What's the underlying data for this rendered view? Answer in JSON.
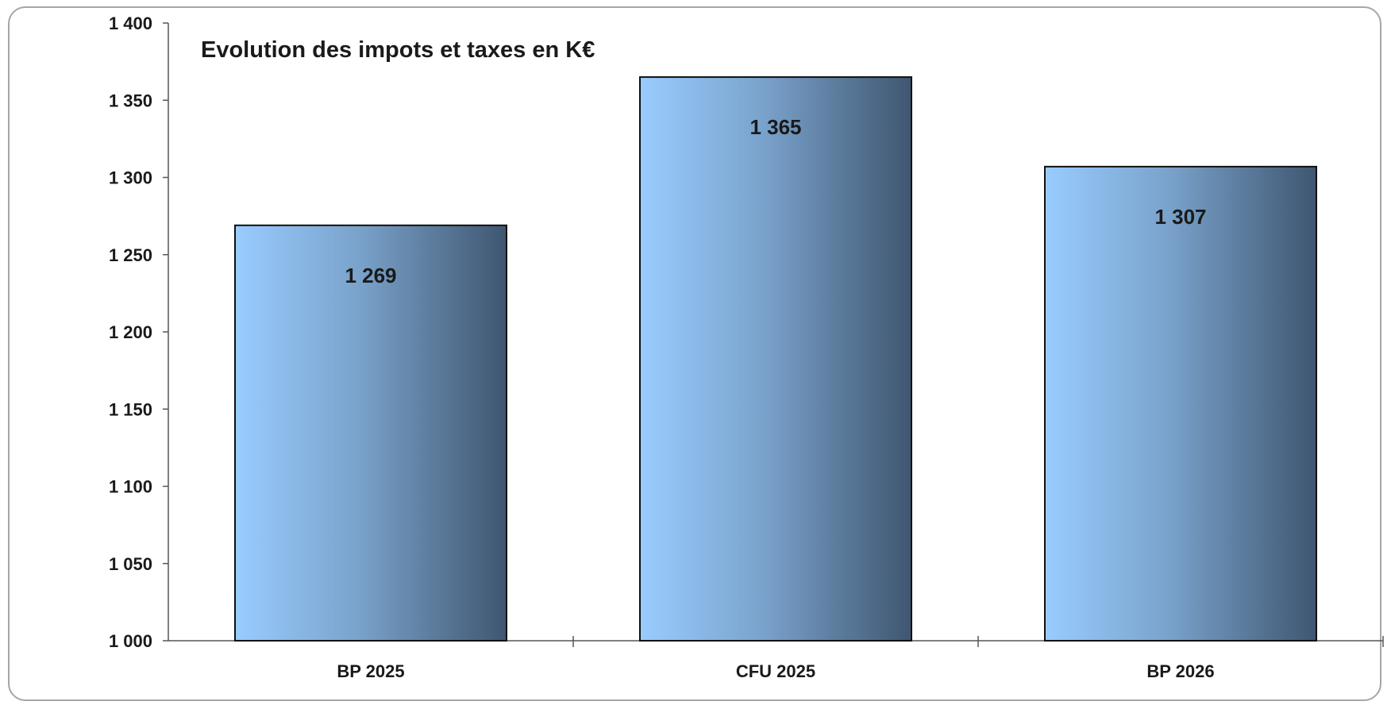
{
  "chart_data": {
    "type": "bar",
    "title": "Evolution des impots et taxes en K€",
    "xlabel": "",
    "ylabel": "",
    "categories": [
      "BP 2025",
      "CFU 2025",
      "BP 2026"
    ],
    "values": [
      1269,
      1365,
      1307
    ],
    "value_labels": [
      "1 269",
      "1 365",
      "1 307"
    ],
    "ylim": [
      1000,
      1400
    ],
    "yticks": [
      1000,
      1050,
      1100,
      1150,
      1200,
      1250,
      1300,
      1350,
      1400
    ],
    "ytick_labels": [
      "1 000",
      "1 050",
      "1 100",
      "1 150",
      "1 200",
      "1 250",
      "1 300",
      "1 350",
      "1 400"
    ],
    "grid": false,
    "legend": "none",
    "colors": {
      "bar_gradient_light": "#99ccff",
      "bar_gradient_mid": "#7aa3cc",
      "bar_gradient_dark": "#3f5670",
      "bar_border": "#111111",
      "axis": "#555555",
      "frame_border": "#a6a6a6"
    }
  }
}
